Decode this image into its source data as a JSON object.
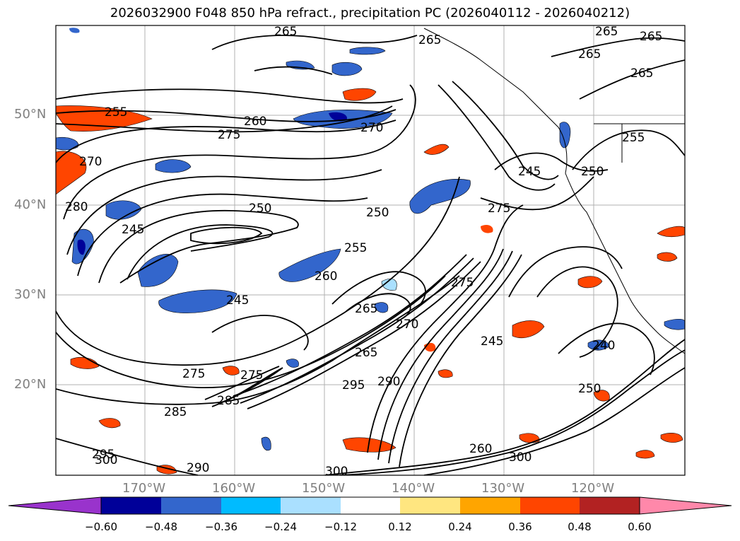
{
  "title": "2026032900 F048 850 hPa refract., precipitation PC (2026040112 - 2026040212)",
  "lat_labels": [
    "50°N",
    "40°N",
    "30°N",
    "20°N"
  ],
  "lon_labels": [
    "170°W",
    "160°W",
    "150°W",
    "140°W",
    "130°W",
    "120°W"
  ],
  "contour_labels": [
    "265",
    "265",
    "265",
    "265",
    "265",
    "265",
    "255",
    "260",
    "275",
    "270",
    "270",
    "245",
    "250",
    "275",
    "280",
    "250",
    "245",
    "255",
    "250",
    "260",
    "245",
    "265",
    "270",
    "275",
    "275",
    "245",
    "265",
    "285",
    "290",
    "295",
    "240",
    "285",
    "275",
    "255",
    "295",
    "300",
    "260",
    "290",
    "300",
    "300",
    "250"
  ],
  "colorbar": {
    "ticks": [
      "−0.60",
      "−0.48",
      "−0.36",
      "−0.24",
      "−0.12",
      "0.12",
      "0.24",
      "0.36",
      "0.48",
      "0.60"
    ],
    "colors": [
      "#9933cc",
      "#000099",
      "#3366cc",
      "#00bbff",
      "#aae0ff",
      "#ffffff",
      "#ffe680",
      "#ffa500",
      "#ff4500",
      "#b22222",
      "#ff88aa"
    ]
  }
}
